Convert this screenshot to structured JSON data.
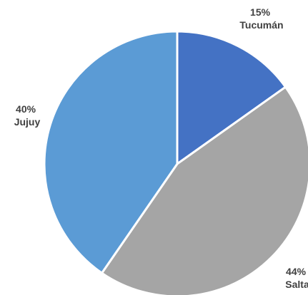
{
  "chart_data": {
    "type": "pie",
    "title": "",
    "start_angle_deg": 0,
    "direction": "clockwise",
    "slices": [
      {
        "label": "Tucumán",
        "value": 15,
        "value_text": "15%",
        "color": "#4472c4"
      },
      {
        "label": "Salta",
        "value": 44,
        "value_text": "44%",
        "color": "#a5a5a5"
      },
      {
        "label": "Jujuy",
        "value": 40,
        "value_text": "40%",
        "color": "#5b9bd5"
      }
    ]
  }
}
